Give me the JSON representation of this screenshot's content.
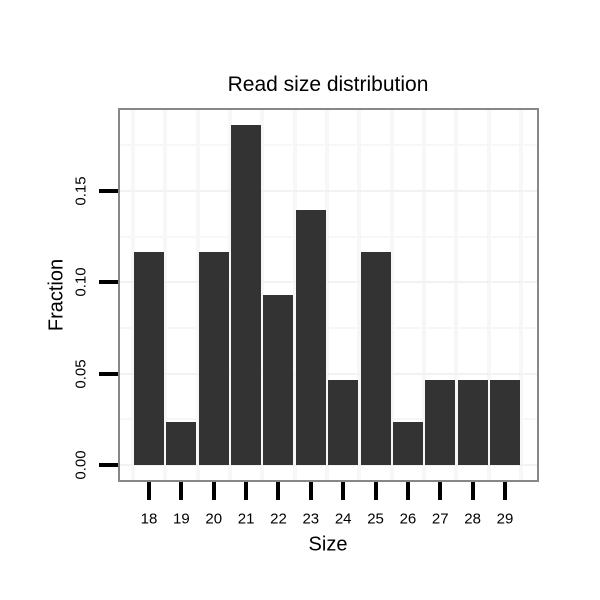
{
  "title": "Read size distribution",
  "chart_data": {
    "type": "bar",
    "title": "Read size distribution",
    "xlabel": "Size",
    "ylabel": "Fraction",
    "categories": [
      "18",
      "19",
      "20",
      "21",
      "22",
      "23",
      "24",
      "25",
      "26",
      "27",
      "28",
      "29"
    ],
    "values": [
      0.1163,
      0.0233,
      0.1163,
      0.186,
      0.093,
      0.1395,
      0.0465,
      0.1163,
      0.0233,
      0.0465,
      0.0465,
      0.0465
    ],
    "y_ticks": [
      "0.00",
      "0.05",
      "0.10",
      "0.15"
    ],
    "y_minor_gridlines": [
      0.025,
      0.075,
      0.125,
      0.175
    ],
    "ylim": [
      -0.008,
      0.194
    ],
    "legend_position": "none",
    "grid": "horizontal major+minor and vertical category-boundary lines, very light gray",
    "colors": {
      "bar": "#333333",
      "axis_text": "#000000",
      "tick_mark": "#000000",
      "panel_border": "#878787",
      "major_grid": "#f2f2f2",
      "minor_grid": "#f7f7f7",
      "background": "#ffffff"
    }
  }
}
